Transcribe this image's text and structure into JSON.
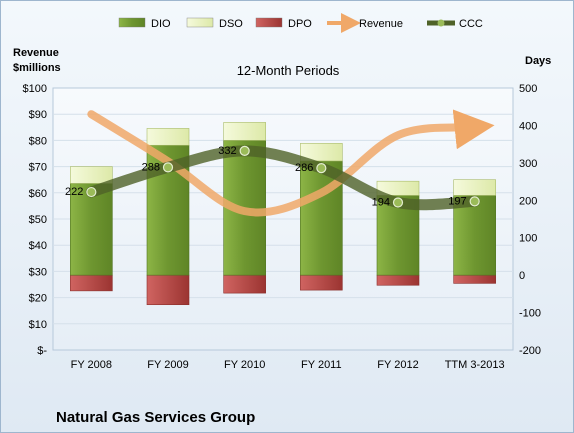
{
  "chart_data": {
    "type": "bar",
    "title": "12-Month Periods",
    "company": "Natural Gas Services Group",
    "left_axis_label": [
      "Revenue",
      "$millions"
    ],
    "right_axis_label": "Days",
    "categories": [
      "FY 2008",
      "FY 2009",
      "FY 2010",
      "FY 2011",
      "FY 2012",
      "TTM 3-2013"
    ],
    "left_ticks": [
      "$-",
      "$10",
      "$20",
      "$30",
      "$40",
      "$50",
      "$60",
      "$70",
      "$80",
      "$90",
      "$100"
    ],
    "right_ticks": [
      "-200",
      "-100",
      "0",
      "100",
      "200",
      "300",
      "400",
      "500"
    ],
    "y_right_range": [
      -200,
      500
    ],
    "y_left_range": [
      0,
      100
    ],
    "series": [
      {
        "name": "DIO",
        "type": "bar",
        "color": "#7aa33a",
        "values": [
          245,
          347,
          360,
          305,
          213,
          213
        ]
      },
      {
        "name": "DSO",
        "type": "bar",
        "color": "#eef5c8",
        "values": [
          45,
          45,
          48,
          47,
          38,
          42
        ]
      },
      {
        "name": "DPO",
        "type": "bar",
        "color": "#c0504d",
        "values": [
          -42,
          -79,
          -48,
          -40,
          -27,
          -22
        ]
      },
      {
        "name": "Revenue",
        "type": "line",
        "color": "#f0a868",
        "values": [
          90,
          72,
          53,
          60,
          82,
          85
        ]
      },
      {
        "name": "CCC",
        "type": "line",
        "color": "#4f6228",
        "values": [
          222,
          288,
          332,
          286,
          194,
          197
        ],
        "labels": [
          "222",
          "288",
          "332",
          "286",
          "194",
          "197"
        ]
      }
    ],
    "legend": {
      "position": "top",
      "items": [
        "DIO",
        "DSO",
        "DPO",
        "Revenue",
        "CCC"
      ]
    }
  }
}
